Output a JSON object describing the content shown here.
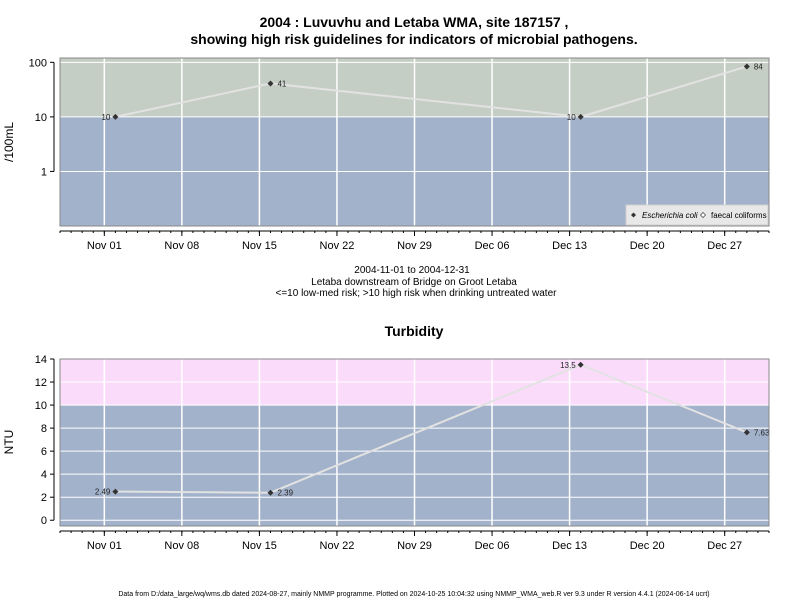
{
  "chart_data": [
    {
      "type": "line",
      "title": "2004 : Luvuvhu and Letaba WMA, site 187157 ,",
      "title_line2": "showing high risk guidelines for indicators of microbial pathogens.",
      "ylabel": "/100mL",
      "yscale": "log",
      "ylim": [
        0.1,
        120
      ],
      "y_ticks": [
        1,
        10,
        100
      ],
      "y_tick_labels": [
        "1",
        "10",
        "100"
      ],
      "xlim": [
        "2004-10-28",
        "2004-12-31"
      ],
      "x_ticks": [
        "2004-11-01",
        "2004-11-08",
        "2004-11-15",
        "2004-11-22",
        "2004-11-29",
        "2004-12-06",
        "2004-12-13",
        "2004-12-20",
        "2004-12-27"
      ],
      "x_tick_labels": [
        "Nov 01",
        "Nov 08",
        "Nov 15",
        "Nov 22",
        "Nov 29",
        "Dec 06",
        "Dec 13",
        "Dec 20",
        "Dec 27"
      ],
      "bands": [
        {
          "from": 0.1,
          "to": 10,
          "color": "#a3b2cb"
        },
        {
          "from": 10,
          "to": 120,
          "color": "#c5cec4"
        }
      ],
      "grid": true,
      "series": [
        {
          "name": "Escherichia coli",
          "x": [
            "2004-11-02",
            "2004-11-16",
            "2004-12-14",
            "2004-12-29"
          ],
          "y": [
            10,
            41,
            10,
            84
          ],
          "labels": [
            "10",
            "41",
            "10",
            "84"
          ],
          "color": "#e2e2e2"
        }
      ],
      "legend": {
        "placement": "bottom-right",
        "entries": [
          "Escherichia coli",
          "faecal coliforms"
        ]
      },
      "caption": [
        "2004-11-01 to 2004-12-31",
        "Letaba downstream of Bridge on Groot Letaba",
        "<=10 low-med risk; >10 high risk when drinking untreated water"
      ]
    },
    {
      "type": "line",
      "title": "Turbidity",
      "ylabel": "NTU",
      "ylim": [
        -0.5,
        14
      ],
      "y_ticks": [
        0,
        2,
        4,
        6,
        8,
        10,
        12,
        14
      ],
      "y_tick_labels": [
        "0",
        "2",
        "4",
        "6",
        "8",
        "10",
        "12",
        "14"
      ],
      "xlim": [
        "2004-10-28",
        "2004-12-31"
      ],
      "x_ticks": [
        "2004-11-01",
        "2004-11-08",
        "2004-11-15",
        "2004-11-22",
        "2004-11-29",
        "2004-12-06",
        "2004-12-13",
        "2004-12-20",
        "2004-12-27"
      ],
      "x_tick_labels": [
        "Nov 01",
        "Nov 08",
        "Nov 15",
        "Nov 22",
        "Nov 29",
        "Dec 06",
        "Dec 13",
        "Dec 20",
        "Dec 27"
      ],
      "bands": [
        {
          "from": -0.5,
          "to": 10,
          "color": "#a3b2cb"
        },
        {
          "from": 10,
          "to": 14,
          "color": "#fadcfa"
        }
      ],
      "grid": true,
      "series": [
        {
          "x": [
            "2004-11-02",
            "2004-11-16",
            "2004-12-14",
            "2004-12-29"
          ],
          "y": [
            2.49,
            2.39,
            13.5,
            7.63
          ],
          "labels": [
            "2.49",
            "2.39",
            "13.5",
            "7.63"
          ],
          "color": "#e2e2e2"
        }
      ]
    }
  ],
  "footer": "Data from D:/data_large/wq/wms.db dated 2024-08-27, mainly NMMP programme. Plotted on 2024-10-25 10:04:32 using NMMP_WMA_web.R ver 9.3 under R version 4.4.1 (2024-06-14 ucrt)"
}
